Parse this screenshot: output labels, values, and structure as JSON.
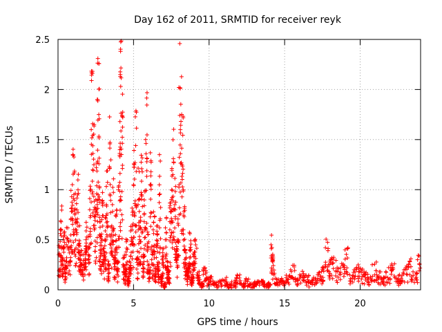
{
  "chart_data": {
    "type": "scatter",
    "title": "Day 162 of 2011, SRMTID for receiver reyk",
    "xlabel": "GPS time / hours",
    "ylabel": "SRMTID / TECUs",
    "xlim": [
      0,
      24
    ],
    "ylim": [
      0,
      2.5
    ],
    "grid": true,
    "marker": "+",
    "series": [
      {
        "name": "SRMTID",
        "color": "#ff0000",
        "x": [
          0.05,
          0.15,
          0.25,
          0.35,
          0.45,
          0.55,
          0.7,
          0.85,
          0.95,
          1.05,
          1.15,
          1.25,
          1.35,
          1.45,
          1.55,
          1.7,
          1.85,
          2.0,
          2.1,
          2.2,
          2.3,
          2.4,
          2.5,
          2.6,
          2.7,
          2.75,
          2.8,
          2.9,
          3.0,
          3.1,
          3.2,
          3.3,
          3.4,
          3.5,
          3.6,
          3.7,
          3.8,
          3.9,
          4.0,
          4.1,
          4.15,
          4.2,
          4.3,
          4.4,
          4.5,
          4.6,
          4.7,
          4.8,
          4.9,
          5.0,
          5.1,
          5.2,
          5.3,
          5.4,
          5.5,
          5.6,
          5.7,
          5.8,
          5.9,
          6.0,
          6.1,
          6.2,
          6.3,
          6.4,
          6.5,
          6.6,
          6.7,
          6.8,
          6.9,
          7.0,
          7.1,
          7.2,
          7.3,
          7.4,
          7.5,
          7.6,
          7.7,
          7.8,
          7.9,
          8.0,
          8.1,
          8.2,
          8.3,
          8.4,
          8.5,
          8.6,
          8.7,
          8.8,
          8.9,
          9.0,
          9.2,
          9.4,
          9.6,
          9.8,
          10.0,
          10.3,
          10.6,
          10.9,
          11.2,
          11.5,
          11.8,
          12.1,
          12.4,
          12.7,
          13.0,
          13.3,
          13.6,
          13.9,
          14.1,
          14.2,
          14.3,
          14.5,
          14.8,
          15.1,
          15.4,
          15.7,
          16.0,
          16.3,
          16.6,
          16.9,
          17.2,
          17.5,
          17.7,
          17.9,
          18.1,
          18.4,
          18.7,
          19.0,
          19.3,
          19.6,
          19.9,
          20.2,
          20.5,
          20.8,
          21.1,
          21.4,
          21.7,
          22.0,
          22.3,
          22.6,
          22.9,
          23.2,
          23.5,
          23.8
        ],
        "y": [
          0.35,
          0.6,
          0.3,
          0.5,
          0.2,
          0.45,
          0.4,
          0.7,
          1.05,
          0.95,
          0.6,
          0.8,
          0.45,
          0.3,
          0.25,
          0.35,
          0.5,
          0.3,
          0.8,
          1.6,
          1.2,
          0.6,
          0.9,
          1.9,
          1.75,
          0.55,
          0.4,
          0.7,
          0.3,
          0.5,
          0.85,
          0.2,
          1.23,
          0.45,
          0.85,
          0.3,
          0.55,
          0.2,
          1.0,
          1.68,
          2.03,
          1.35,
          0.25,
          0.15,
          0.35,
          0.1,
          0.2,
          0.45,
          0.6,
          1.05,
          1.27,
          0.3,
          0.85,
          0.5,
          0.95,
          0.25,
          0.75,
          1.5,
          0.4,
          0.2,
          1.05,
          0.3,
          0.6,
          0.15,
          0.45,
          0.2,
          0.95,
          0.1,
          0.3,
          0.05,
          0.5,
          0.2,
          0.15,
          0.6,
          0.9,
          1.15,
          0.8,
          0.3,
          0.5,
          2.02,
          1.6,
          1.25,
          0.6,
          0.3,
          0.15,
          0.2,
          0.4,
          0.1,
          0.25,
          0.35,
          0.15,
          0.05,
          0.2,
          0.1,
          0.12,
          0.06,
          0.08,
          0.1,
          0.05,
          0.08,
          0.12,
          0.06,
          0.09,
          0.05,
          0.07,
          0.08,
          0.05,
          0.06,
          0.45,
          0.3,
          0.15,
          0.1,
          0.08,
          0.12,
          0.2,
          0.1,
          0.15,
          0.12,
          0.08,
          0.1,
          0.15,
          0.2,
          0.42,
          0.25,
          0.3,
          0.18,
          0.22,
          0.4,
          0.15,
          0.2,
          0.18,
          0.15,
          0.12,
          0.25,
          0.15,
          0.1,
          0.18,
          0.22,
          0.12,
          0.15,
          0.2,
          0.25,
          0.18,
          0.3
        ],
        "jitter_seed": 7
      }
    ],
    "xticks": [
      "0",
      "5",
      "10",
      "15",
      "20"
    ],
    "yticks": [
      "0",
      "0.5",
      "1",
      "1.5",
      "2",
      "2.5"
    ]
  }
}
